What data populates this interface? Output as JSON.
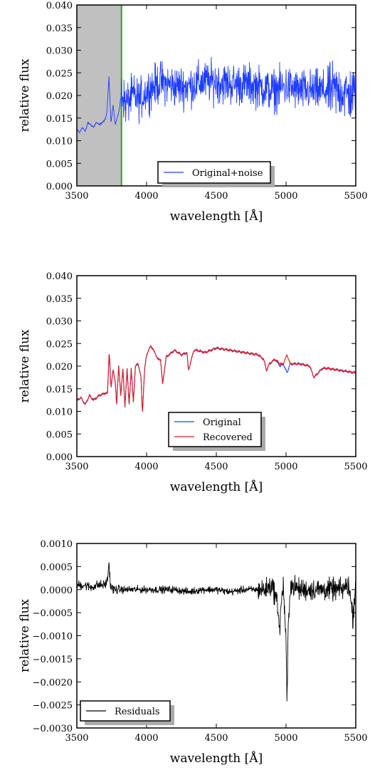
{
  "chart_data": [
    {
      "type": "line",
      "title": "",
      "xlabel": "wavelength [Å]",
      "ylabel": "relative flux",
      "xlim": [
        3500,
        5500
      ],
      "ylim": [
        0,
        0.04
      ],
      "xticks": [
        "3500",
        "4000",
        "4500",
        "5000",
        "5500"
      ],
      "yticks": [
        "0.000",
        "0.005",
        "0.010",
        "0.015",
        "0.020",
        "0.025",
        "0.030",
        "0.035",
        "0.040"
      ],
      "grid": false,
      "legend_position": "lower-right",
      "shaded_region": {
        "x_start": 3500,
        "x_end": 3820,
        "color": "#c0c0c0"
      },
      "vertical_line": {
        "x": 3820,
        "color": "#2ca02c"
      },
      "series": [
        {
          "name": "Original+noise",
          "color": "#1f3dff",
          "x": [
            3500,
            3520,
            3540,
            3560,
            3580,
            3600,
            3620,
            3640,
            3660,
            3680,
            3700,
            3715,
            3730,
            3745,
            3760,
            3775,
            3790,
            3805,
            3820,
            3850,
            3900,
            3950,
            4000,
            4050,
            4100,
            4200,
            4300,
            4400,
            4500,
            4600,
            4700,
            4800,
            4900,
            5000,
            5100,
            5200,
            5300,
            5400,
            5450,
            5500
          ],
          "values": [
            0.0125,
            0.0118,
            0.013,
            0.012,
            0.014,
            0.0135,
            0.013,
            0.014,
            0.0135,
            0.014,
            0.0145,
            0.016,
            0.024,
            0.014,
            0.018,
            0.0135,
            0.015,
            0.017,
            0.021,
            0.018,
            0.02,
            0.019,
            0.021,
            0.022,
            0.023,
            0.022,
            0.022,
            0.023,
            0.023,
            0.0225,
            0.0225,
            0.022,
            0.021,
            0.022,
            0.021,
            0.021,
            0.021,
            0.021,
            0.02,
            0.0205
          ],
          "noise": 0.0045
        }
      ]
    },
    {
      "type": "line",
      "title": "",
      "xlabel": "wavelength [Å]",
      "ylabel": "relative flux",
      "xlim": [
        3500,
        5500
      ],
      "ylim": [
        0,
        0.04
      ],
      "xticks": [
        "3500",
        "4000",
        "4500",
        "5000",
        "5500"
      ],
      "yticks": [
        "0.000",
        "0.005",
        "0.010",
        "0.015",
        "0.020",
        "0.025",
        "0.030",
        "0.035",
        "0.040"
      ],
      "grid": false,
      "legend_position": "bottom-center",
      "series": [
        {
          "name": "Original",
          "color": "#1f3dff",
          "x": [
            3500,
            3530,
            3560,
            3590,
            3620,
            3660,
            3700,
            3720,
            3732,
            3745,
            3760,
            3775,
            3785,
            3800,
            3815,
            3830,
            3845,
            3860,
            3875,
            3890,
            3905,
            3920,
            3940,
            3960,
            3970,
            3985,
            4000,
            4030,
            4060,
            4080,
            4100,
            4115,
            4140,
            4200,
            4250,
            4290,
            4300,
            4330,
            4340,
            4360,
            4420,
            4500,
            4600,
            4700,
            4800,
            4840,
            4860,
            4880,
            4920,
            4959,
            4980,
            5007,
            5030,
            5100,
            5170,
            5200,
            5260,
            5300,
            5400,
            5500
          ],
          "values": [
            0.0125,
            0.013,
            0.0115,
            0.0135,
            0.0125,
            0.0135,
            0.014,
            0.014,
            0.0235,
            0.015,
            0.0195,
            0.0165,
            0.0115,
            0.02,
            0.0135,
            0.0195,
            0.011,
            0.0195,
            0.0115,
            0.0195,
            0.012,
            0.02,
            0.0205,
            0.0175,
            0.0095,
            0.019,
            0.0225,
            0.0245,
            0.023,
            0.0215,
            0.0215,
            0.016,
            0.022,
            0.0235,
            0.0225,
            0.023,
            0.019,
            0.0225,
            0.0235,
            0.0235,
            0.023,
            0.024,
            0.0235,
            0.023,
            0.0225,
            0.0215,
            0.019,
            0.0205,
            0.0215,
            0.02,
            0.0205,
            0.0185,
            0.0205,
            0.0205,
            0.02,
            0.0175,
            0.0195,
            0.0195,
            0.019,
            0.0185
          ]
        },
        {
          "name": "Recovered",
          "color": "#e31a1c",
          "x": [
            3500,
            3530,
            3560,
            3590,
            3620,
            3660,
            3700,
            3720,
            3732,
            3745,
            3760,
            3775,
            3785,
            3800,
            3815,
            3830,
            3845,
            3860,
            3875,
            3890,
            3905,
            3920,
            3940,
            3960,
            3970,
            3985,
            4000,
            4030,
            4060,
            4080,
            4100,
            4115,
            4140,
            4200,
            4250,
            4290,
            4300,
            4330,
            4340,
            4360,
            4420,
            4500,
            4600,
            4700,
            4800,
            4840,
            4860,
            4880,
            4920,
            4959,
            4980,
            5007,
            5030,
            5100,
            5170,
            5200,
            5260,
            5300,
            5400,
            5500
          ],
          "values": [
            0.0125,
            0.013,
            0.0115,
            0.0135,
            0.0125,
            0.0135,
            0.014,
            0.014,
            0.0235,
            0.015,
            0.0195,
            0.0165,
            0.0115,
            0.02,
            0.0135,
            0.0195,
            0.011,
            0.0195,
            0.0115,
            0.0195,
            0.012,
            0.02,
            0.0205,
            0.0175,
            0.0095,
            0.019,
            0.0225,
            0.0245,
            0.023,
            0.0215,
            0.0215,
            0.016,
            0.022,
            0.0235,
            0.0225,
            0.023,
            0.019,
            0.0225,
            0.0235,
            0.0235,
            0.023,
            0.024,
            0.0235,
            0.023,
            0.0225,
            0.0215,
            0.019,
            0.0205,
            0.0215,
            0.0205,
            0.0205,
            0.0225,
            0.0205,
            0.0205,
            0.02,
            0.0175,
            0.0195,
            0.0195,
            0.019,
            0.0185
          ]
        }
      ]
    },
    {
      "type": "line",
      "title": "",
      "xlabel": "wavelength [Å]",
      "ylabel": "relative flux",
      "xlim": [
        3500,
        5500
      ],
      "ylim": [
        -0.003,
        0.001
      ],
      "xticks": [
        "3500",
        "4000",
        "4500",
        "5000",
        "5500"
      ],
      "yticks": [
        "−0.0030",
        "−0.0025",
        "−0.0020",
        "−0.0015",
        "−0.0010",
        "−0.0005",
        "0.0000",
        "0.0005",
        "0.0010"
      ],
      "grid": false,
      "legend_position": "lower-left",
      "series": [
        {
          "name": "Residuals",
          "color": "#000000",
          "x": [
            3500,
            3550,
            3600,
            3650,
            3700,
            3720,
            3730,
            3740,
            3760,
            3800,
            3900,
            4000,
            4100,
            4200,
            4300,
            4400,
            4500,
            4600,
            4700,
            4800,
            4850,
            4900,
            4940,
            4955,
            4965,
            4980,
            4990,
            5000,
            5007,
            5015,
            5030,
            5100,
            5200,
            5300,
            5400,
            5450,
            5480,
            5500
          ],
          "values": [
            0.0001,
            0.0001,
            5e-05,
            0.0001,
            0.0001,
            0.0002,
            0.0006,
            0.0001,
            0.0,
            0.0,
            0.0,
            0.0,
            0.0,
            0.0,
            -5e-05,
            0.0,
            0.0,
            -5e-05,
            0.0,
            0.0,
            0.0,
            0.0001,
            -0.0003,
            -0.0009,
            -0.0003,
            0.0001,
            -0.0005,
            -0.0012,
            -0.0025,
            -0.0009,
            0.0001,
            0.0,
            0.0,
            0.0,
            0.0,
            0.0001,
            -0.0006,
            0.0002
          ],
          "noise": 0.00013
        }
      ]
    }
  ]
}
